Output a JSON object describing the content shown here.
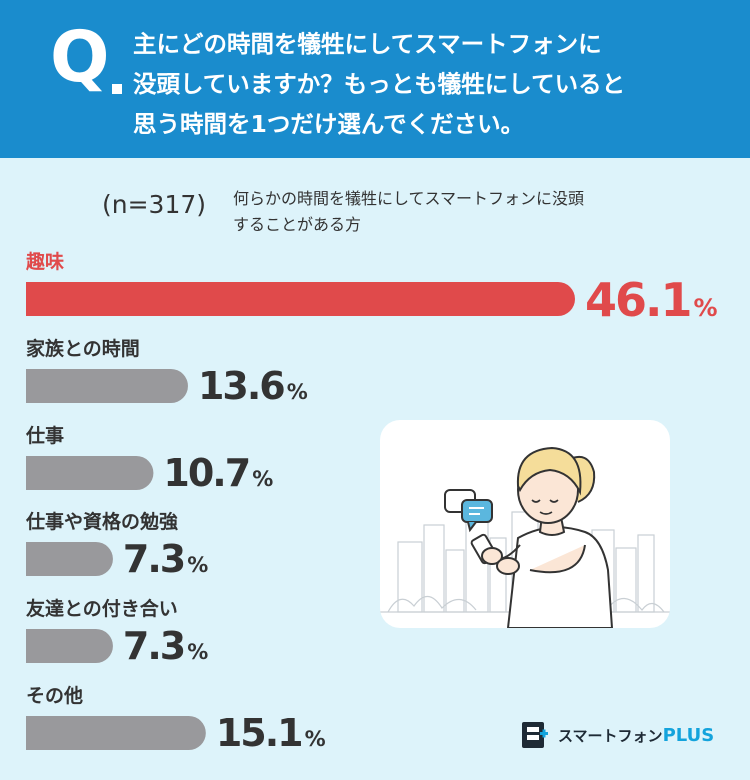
{
  "header": {
    "q_letter": "Q",
    "question_lines": [
      "主にどの時間を犠牲にしてスマートフォンに",
      "没頭していますか？もっとも犠牲にしていると",
      "思う時間を1つだけ選んでください。"
    ]
  },
  "sample": {
    "n_label": "(n=317)",
    "desc_lines": [
      "何らかの時間を犠牲にしてスマートフォンに没頭",
      "することがある方"
    ]
  },
  "colors": {
    "header_bg": "#1a8ccd",
    "background": "#ddf3fa",
    "highlight": "#e04a4b",
    "bar_gray": "#99999c",
    "text_dark": "#333333"
  },
  "chart_data": {
    "type": "bar",
    "orientation": "horizontal",
    "unit": "%",
    "categories": [
      "趣味",
      "家族との時間",
      "仕事",
      "仕事や資格の勉強",
      "友達との付き合い",
      "その他"
    ],
    "values": [
      46.1,
      13.6,
      10.7,
      7.3,
      7.3,
      15.1
    ],
    "highlight_index": 0
  },
  "logo": {
    "text": "スマートフォン",
    "plus": "PLUS"
  }
}
